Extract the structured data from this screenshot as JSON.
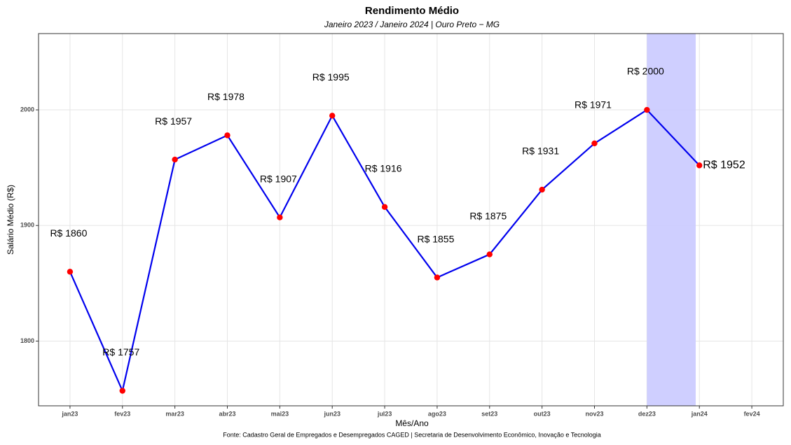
{
  "chart_data": {
    "type": "line",
    "title": "Rendimento Médio",
    "subtitle": "Janeiro 2023 / Janeiro 2024 | Ouro Preto − MG",
    "x_label": "Mês/Ano",
    "y_label": "Salário Médio (R$)",
    "caption": "Fonte: Cadastro Geral de Empregados e Desempregados CAGED | Secretaria de Desenvolvimento Econômico, Inovação e Tecnologia",
    "categories": [
      "jan23",
      "fev23",
      "mar23",
      "abr23",
      "mai23",
      "jun23",
      "jul23",
      "ago23",
      "set23",
      "out23",
      "nov23",
      "dez23",
      "jan24",
      "fev24"
    ],
    "series": [
      {
        "name": "Rendimento",
        "color": "#0000ee",
        "marker_color": "#ff0000",
        "values": [
          1860,
          1757,
          1957,
          1978,
          1907,
          1995,
          1916,
          1855,
          1875,
          1931,
          1971,
          2000,
          1952,
          null
        ],
        "value_labels": [
          "R$ 1860",
          "R$ 1757",
          "R$ 1957",
          "R$ 1978",
          "R$ 1907",
          "R$ 1995",
          "R$ 1916",
          "R$ 1855",
          "R$ 1875",
          "R$ 1931",
          "R$ 1971",
          "R$ 2000",
          "R$ 1952",
          null
        ]
      }
    ],
    "highlight": {
      "from": "dez23",
      "to": "jan24",
      "color": "#ccccff"
    },
    "ylim": [
      1744,
      2066
    ],
    "yticks": [
      1800,
      1900,
      2000
    ],
    "grid": true
  }
}
